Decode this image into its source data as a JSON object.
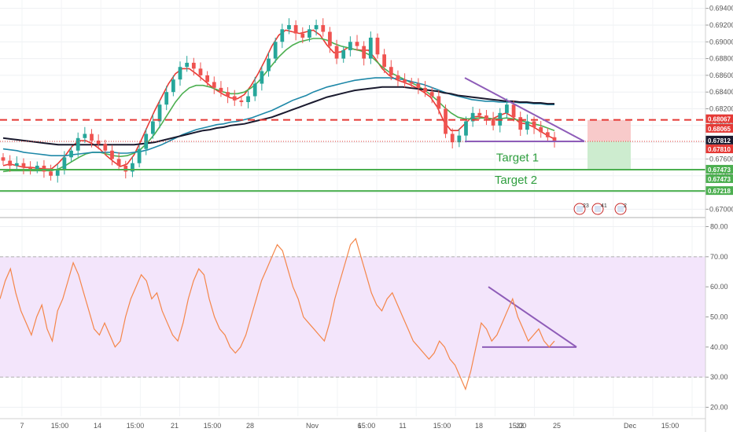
{
  "chart_data": [
    {
      "type": "candlestick",
      "name": "price",
      "y_axis": {
        "ticks": [
          0.67,
          0.672,
          0.674,
          0.676,
          0.678,
          0.68,
          0.682,
          0.684,
          0.686,
          0.688,
          0.69,
          0.692,
          0.694
        ],
        "tick_labels": [
          "0.67000",
          "0.67200",
          "0.67400",
          "0.67600",
          "0.67800",
          "0.68000",
          "0.68200",
          "0.68400",
          "0.68600",
          "0.68800",
          "0.69000",
          "0.69200",
          "0.69400"
        ],
        "ylim": [
          0.669,
          0.695
        ],
        "side": "right"
      },
      "x_axis": {
        "tick_labels": [
          "7",
          "15:00",
          "14",
          "15:00",
          "21",
          "15:00",
          "28",
          "Nov",
          "6",
          "15:00",
          "11",
          "15:00",
          "18",
          "15:00",
          "22",
          "25",
          "Dec",
          "15:00"
        ]
      },
      "close_series": [
        0.6758,
        0.6752,
        0.6755,
        0.675,
        0.6748,
        0.6752,
        0.6745,
        0.674,
        0.6748,
        0.6762,
        0.677,
        0.6785,
        0.679,
        0.6782,
        0.6778,
        0.677,
        0.676,
        0.6752,
        0.6745,
        0.6755,
        0.6772,
        0.679,
        0.6805,
        0.6825,
        0.684,
        0.6855,
        0.687,
        0.6875,
        0.6868,
        0.686,
        0.6852,
        0.6845,
        0.684,
        0.6835,
        0.683,
        0.6828,
        0.6835,
        0.685,
        0.6865,
        0.688,
        0.69,
        0.6915,
        0.692,
        0.691,
        0.6905,
        0.6915,
        0.692,
        0.6912,
        0.6895,
        0.688,
        0.689,
        0.69,
        0.6895,
        0.688,
        0.6905,
        0.6885,
        0.687,
        0.686,
        0.6855,
        0.6852,
        0.685,
        0.6845,
        0.684,
        0.6835,
        0.682,
        0.679,
        0.678,
        0.6788,
        0.6805,
        0.6815,
        0.6812,
        0.6808,
        0.68,
        0.6815,
        0.6825,
        0.681,
        0.6795,
        0.6805,
        0.6798,
        0.6792,
        0.6786,
        0.6781
      ],
      "moving_averages": [
        {
          "color": "#e83b35",
          "values": [
            0.6752,
            0.6754,
            0.6752,
            0.675,
            0.675,
            0.6749,
            0.6748,
            0.6748,
            0.6755,
            0.6764,
            0.6775,
            0.6782,
            0.6782,
            0.6778,
            0.6772,
            0.6764,
            0.6757,
            0.6751,
            0.6754,
            0.6765,
            0.6782,
            0.68,
            0.6818,
            0.6834,
            0.685,
            0.6862,
            0.6868,
            0.6868,
            0.6862,
            0.6855,
            0.6848,
            0.6842,
            0.6837,
            0.6833,
            0.6832,
            0.6837,
            0.6848,
            0.6862,
            0.6878,
            0.6895,
            0.6908,
            0.6914,
            0.6912,
            0.691,
            0.6912,
            0.6914,
            0.6908,
            0.6896,
            0.6887,
            0.6888,
            0.6893,
            0.6891,
            0.689,
            0.689,
            0.688,
            0.6868,
            0.686,
            0.6855,
            0.6852,
            0.6849,
            0.6845,
            0.684,
            0.6834,
            0.6822,
            0.6804,
            0.6794,
            0.6794,
            0.6802,
            0.681,
            0.6811,
            0.6809,
            0.6808,
            0.6812,
            0.6815,
            0.681,
            0.6803,
            0.6802,
            0.6798,
            0.6793,
            0.6788,
            0.6784
          ]
        },
        {
          "color": "#4caf50",
          "values": [
            0.6745,
            0.6746,
            0.6746,
            0.6746,
            0.6746,
            0.6746,
            0.6746,
            0.6746,
            0.6748,
            0.6752,
            0.6757,
            0.6762,
            0.6766,
            0.6768,
            0.6768,
            0.6766,
            0.6764,
            0.6763,
            0.6764,
            0.6767,
            0.6772,
            0.678,
            0.679,
            0.6802,
            0.6815,
            0.6828,
            0.6838,
            0.6845,
            0.6848,
            0.6848,
            0.6846,
            0.6843,
            0.684,
            0.6838,
            0.6838,
            0.684,
            0.6845,
            0.6852,
            0.6862,
            0.6872,
            0.6882,
            0.689,
            0.6896,
            0.69,
            0.6902,
            0.6904,
            0.6904,
            0.6902,
            0.6898,
            0.6895,
            0.6893,
            0.6891,
            0.6889,
            0.6885,
            0.6878,
            0.687,
            0.6864,
            0.686,
            0.6856,
            0.6852,
            0.6848,
            0.6843,
            0.6837,
            0.683,
            0.6822,
            0.6815,
            0.681,
            0.6808,
            0.6808,
            0.6809,
            0.6809,
            0.6808,
            0.6808,
            0.6809,
            0.6808,
            0.6806,
            0.6804,
            0.6802,
            0.68,
            0.6797,
            0.6794
          ]
        },
        {
          "color": "#1e88a8",
          "values": [
            0.6772,
            0.6771,
            0.677,
            0.6768,
            0.6767,
            0.6766,
            0.6765,
            0.6764,
            0.6764,
            0.6764,
            0.6765,
            0.6766,
            0.6767,
            0.6768,
            0.6768,
            0.6768,
            0.6768,
            0.6767,
            0.6767,
            0.6768,
            0.6769,
            0.6771,
            0.6774,
            0.6777,
            0.6781,
            0.6785,
            0.6789,
            0.6792,
            0.6795,
            0.6797,
            0.6799,
            0.6801,
            0.6802,
            0.6804,
            0.6805,
            0.6807,
            0.6809,
            0.6812,
            0.6815,
            0.6818,
            0.6822,
            0.6826,
            0.683,
            0.6833,
            0.6836,
            0.684,
            0.6843,
            0.6846,
            0.6848,
            0.685,
            0.6852,
            0.6854,
            0.6855,
            0.6856,
            0.6857,
            0.6857,
            0.6857,
            0.6856,
            0.6855,
            0.6853,
            0.6851,
            0.6849,
            0.6846,
            0.6843,
            0.684,
            0.6837,
            0.6835,
            0.6833,
            0.6831,
            0.683,
            0.6829,
            0.6829,
            0.6828,
            0.6828,
            0.6828,
            0.6827,
            0.6827,
            0.6826,
            0.6826,
            0.6825,
            0.6825
          ]
        },
        {
          "color": "#1a1a2e",
          "values": [
            0.6785,
            0.6784,
            0.6783,
            0.6782,
            0.6781,
            0.678,
            0.6779,
            0.6778,
            0.6777,
            0.6777,
            0.6777,
            0.6777,
            0.6777,
            0.6777,
            0.6777,
            0.6777,
            0.6777,
            0.6777,
            0.6777,
            0.6777,
            0.6778,
            0.6779,
            0.678,
            0.6782,
            0.6784,
            0.6786,
            0.6788,
            0.679,
            0.6792,
            0.6794,
            0.6795,
            0.6797,
            0.6798,
            0.68,
            0.6801,
            0.6802,
            0.6804,
            0.6806,
            0.6808,
            0.681,
            0.6813,
            0.6816,
            0.6819,
            0.6822,
            0.6825,
            0.6828,
            0.6831,
            0.6834,
            0.6836,
            0.6838,
            0.684,
            0.6842,
            0.6843,
            0.6844,
            0.6845,
            0.6846,
            0.6846,
            0.6846,
            0.6846,
            0.6845,
            0.6844,
            0.6843,
            0.6842,
            0.6841,
            0.6839,
            0.6838,
            0.6836,
            0.6835,
            0.6834,
            0.6833,
            0.6832,
            0.6831,
            0.683,
            0.6829,
            0.6829,
            0.6828,
            0.6828,
            0.6827,
            0.6827,
            0.6826,
            0.6826
          ]
        }
      ],
      "horizontal_levels": [
        {
          "value": 0.68067,
          "label": "0.68067",
          "style": "dashed",
          "color": "#e53935"
        },
        {
          "value": 0.68065,
          "label": "0.68065",
          "style": "none",
          "color": "#e53935"
        },
        {
          "value": 0.67812,
          "label": "0.67812",
          "style": "none",
          "color": "#1a1a2e"
        },
        {
          "value": 0.6781,
          "label": "0.67810",
          "style": "dotted",
          "color": "#e53935"
        },
        {
          "value": 0.67473,
          "label": "0.67473",
          "style": "solid",
          "color": "#4caf50"
        },
        {
          "value": 0.67473,
          "label": "0.67473",
          "style": "none",
          "color": "#4caf50"
        },
        {
          "value": 0.67218,
          "label": "0.67218",
          "style": "solid",
          "color": "#4caf50"
        }
      ],
      "annotations": [
        {
          "text": "Target 1",
          "y": 0.6762
        },
        {
          "text": "Target 2",
          "y": 0.6735
        }
      ],
      "triangle": {
        "upper_start": 0.6857,
        "upper_end": 0.6781,
        "lower": 0.6781
      }
    },
    {
      "type": "line",
      "name": "oscillator",
      "y_axis": {
        "ticks": [
          20,
          30,
          40,
          50,
          60,
          70,
          80
        ],
        "tick_labels": [
          "20.00",
          "30.00",
          "40.00",
          "50.00",
          "60.00",
          "70.00",
          "80.00"
        ],
        "ylim": [
          17,
          83
        ],
        "side": "right"
      },
      "band": [
        30,
        70
      ],
      "values": [
        56,
        62,
        66,
        58,
        52,
        48,
        44,
        50,
        54,
        46,
        42,
        52,
        56,
        62,
        68,
        64,
        58,
        52,
        46,
        44,
        48,
        44,
        40,
        42,
        50,
        56,
        60,
        64,
        62,
        56,
        58,
        52,
        48,
        44,
        42,
        48,
        56,
        62,
        66,
        64,
        56,
        50,
        46,
        44,
        40,
        38,
        40,
        44,
        50,
        56,
        62,
        66,
        70,
        74,
        72,
        66,
        60,
        56,
        50,
        48,
        46,
        44,
        42,
        48,
        56,
        62,
        68,
        74,
        76,
        70,
        64,
        58,
        54,
        52,
        56,
        58,
        54,
        50,
        46,
        42,
        40,
        38,
        36,
        38,
        42,
        40,
        36,
        34,
        30,
        26,
        32,
        40,
        48,
        46,
        42,
        44,
        48,
        52,
        56,
        50,
        46,
        42,
        44,
        46,
        42,
        40,
        42
      ],
      "triangle": {
        "upper_start": 60,
        "upper_end": 40,
        "lower": 40
      }
    }
  ],
  "markers": [
    {
      "icon": "flag-icon",
      "badge": "23"
    },
    {
      "icon": "flag-icon",
      "badge": "41"
    },
    {
      "icon": "flag-icon",
      "badge": "2"
    }
  ]
}
